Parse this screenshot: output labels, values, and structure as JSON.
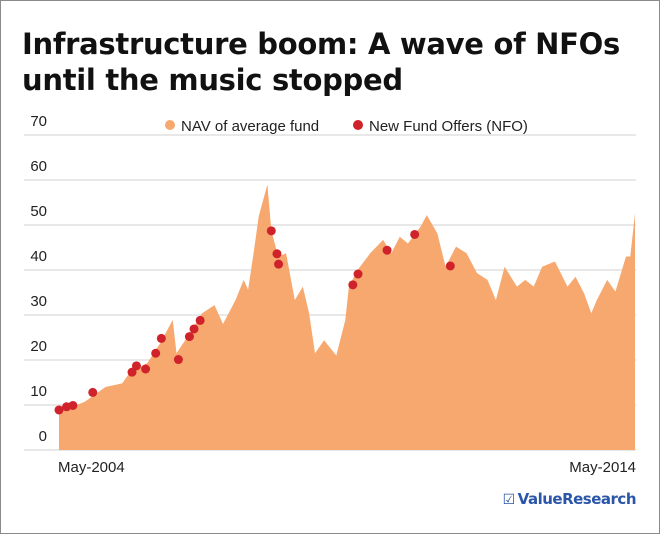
{
  "title": "Infrastructure boom: A wave of NFOs until the music stopped",
  "logo": {
    "text": "ValueResearch",
    "icon": "checkbox-icon"
  },
  "colors": {
    "area": "#f6a86f",
    "dots": "#d0222a",
    "grid": "#d9d9d9",
    "logo": "#2a55a8"
  },
  "chart_data": {
    "type": "area",
    "title": "Infrastructure boom: A wave of NFOs until the music stopped",
    "xlabel": "",
    "ylabel": "",
    "ylim": [
      0,
      70
    ],
    "yticks": [
      0,
      10,
      20,
      30,
      40,
      50,
      60,
      70
    ],
    "xlim": [
      "2004-05-01",
      "2014-05-01"
    ],
    "xtick_labels": [
      "May-2004",
      "May-2014"
    ],
    "grid": "horizontal",
    "legend": {
      "position": "top",
      "entries": [
        "NAV of average fund",
        "New Fund Offers (NFO)"
      ]
    },
    "series": [
      {
        "name": "NAV of average fund",
        "type": "area",
        "points": [
          [
            "2004-05-01",
            8.5
          ],
          [
            "2004-10-10",
            10.7
          ],
          [
            "2005-02-20",
            14
          ],
          [
            "2005-06-05",
            14.8
          ],
          [
            "2005-07-28",
            17.4
          ],
          [
            "2005-11-12",
            19.3
          ],
          [
            "2006-02-01",
            23.7
          ],
          [
            "2006-04-22",
            28.9
          ],
          [
            "2006-05-16",
            21.5
          ],
          [
            "2006-07-10",
            24.4
          ],
          [
            "2006-10-25",
            30.4
          ],
          [
            "2007-01-12",
            32.2
          ],
          [
            "2007-03-07",
            28
          ],
          [
            "2007-05-25",
            33.3
          ],
          [
            "2007-07-16",
            37.8
          ],
          [
            "2007-08-13",
            35.6
          ],
          [
            "2007-09-22",
            45
          ],
          [
            "2007-10-19",
            51.9
          ],
          [
            "2007-12-13",
            59
          ],
          [
            "2008-01-07",
            48.9
          ],
          [
            "2008-02-19",
            43
          ],
          [
            "2008-04-10",
            43.7
          ],
          [
            "2008-06-04",
            33.3
          ],
          [
            "2008-07-25",
            36.3
          ],
          [
            "2008-09-03",
            30.4
          ],
          [
            "2008-10-10",
            21.5
          ],
          [
            "2008-12-07",
            24.4
          ],
          [
            "2009-02-22",
            21
          ],
          [
            "2009-04-20",
            28.9
          ],
          [
            "2009-05-13",
            36.3
          ],
          [
            "2009-07-07",
            40
          ],
          [
            "2009-09-25",
            43.7
          ],
          [
            "2009-12-16",
            46.7
          ],
          [
            "2010-02-06",
            43.7
          ],
          [
            "2010-04-01",
            47.4
          ],
          [
            "2010-05-22",
            45.9
          ],
          [
            "2010-08-10",
            49.6
          ],
          [
            "2010-09-19",
            52.2
          ],
          [
            "2010-11-25",
            48.1
          ],
          [
            "2011-01-16",
            40.7
          ],
          [
            "2011-03-23",
            45.2
          ],
          [
            "2011-05-29",
            43.7
          ],
          [
            "2011-08-03",
            39.3
          ],
          [
            "2011-10-09",
            37.8
          ],
          [
            "2011-12-01",
            33.3
          ],
          [
            "2012-01-25",
            40.7
          ],
          [
            "2012-04-13",
            36.3
          ],
          [
            "2012-06-04",
            37.8
          ],
          [
            "2012-07-28",
            36.3
          ],
          [
            "2012-09-19",
            40.7
          ],
          [
            "2012-12-09",
            41.9
          ],
          [
            "2013-02-27",
            36.3
          ],
          [
            "2013-04-19",
            38.5
          ],
          [
            "2013-06-12",
            34.8
          ],
          [
            "2013-07-28",
            30.4
          ],
          [
            "2013-09-01",
            33.3
          ],
          [
            "2013-11-06",
            37.8
          ],
          [
            "2013-12-28",
            35.2
          ],
          [
            "2014-03-05",
            43
          ],
          [
            "2014-04-01",
            43
          ],
          [
            "2014-05-01",
            52.6
          ]
        ]
      },
      {
        "name": "New Fund Offers (NFO)",
        "type": "scatter",
        "points": [
          [
            "2004-05-01",
            8.9
          ],
          [
            "2004-06-18",
            9.6
          ],
          [
            "2004-07-28",
            9.9
          ],
          [
            "2004-12-01",
            12.8
          ],
          [
            "2005-08-07",
            17.3
          ],
          [
            "2005-09-04",
            18.7
          ],
          [
            "2005-11-01",
            18
          ],
          [
            "2006-01-04",
            21.5
          ],
          [
            "2006-02-09",
            24.8
          ],
          [
            "2006-05-28",
            20.1
          ],
          [
            "2006-08-06",
            25.2
          ],
          [
            "2006-09-04",
            26.9
          ],
          [
            "2006-10-13",
            28.8
          ],
          [
            "2008-01-07",
            48.7
          ],
          [
            "2008-02-12",
            43.6
          ],
          [
            "2008-02-22",
            41.3
          ],
          [
            "2009-06-07",
            36.7
          ],
          [
            "2009-07-10",
            39.1
          ],
          [
            "2010-01-10",
            44.4
          ],
          [
            "2010-07-04",
            47.9
          ],
          [
            "2011-02-15",
            40.9
          ]
        ]
      }
    ]
  }
}
